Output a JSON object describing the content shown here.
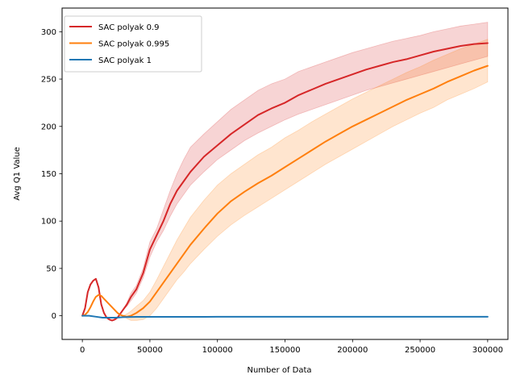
{
  "chart_data": {
    "type": "line",
    "xlabel": "Number of Data",
    "ylabel": "Avg Q1 Value",
    "xlim": [
      -15000,
      315000
    ],
    "ylim": [
      -25,
      325
    ],
    "xticks": [
      0,
      50000,
      100000,
      150000,
      200000,
      250000,
      300000
    ],
    "xtick_labels": [
      "0",
      "50000",
      "100000",
      "150000",
      "200000",
      "250000",
      "300000"
    ],
    "yticks": [
      0,
      50,
      100,
      150,
      200,
      250,
      300
    ],
    "ytick_labels": [
      "0",
      "50",
      "100",
      "150",
      "200",
      "250",
      "300"
    ],
    "grid": false,
    "legend_position": "upper-left",
    "series": [
      {
        "name": "SAC polyak 0.9",
        "color": "#d62728",
        "band_color": "#d62728",
        "x": [
          0,
          2000,
          4000,
          6000,
          8000,
          10000,
          12000,
          14000,
          16000,
          18000,
          20000,
          22000,
          24000,
          26000,
          28000,
          30000,
          33000,
          36000,
          40000,
          45000,
          50000,
          55000,
          60000,
          65000,
          70000,
          75000,
          80000,
          90000,
          100000,
          110000,
          120000,
          130000,
          140000,
          150000,
          160000,
          170000,
          180000,
          190000,
          200000,
          210000,
          220000,
          230000,
          240000,
          250000,
          260000,
          270000,
          280000,
          290000,
          300000
        ],
        "values": [
          0,
          8,
          25,
          33,
          37,
          39,
          30,
          12,
          3,
          -2,
          -4,
          -5,
          -4,
          -2,
          2,
          6,
          12,
          20,
          28,
          45,
          70,
          85,
          100,
          118,
          132,
          142,
          152,
          168,
          180,
          192,
          202,
          212,
          219,
          225,
          233,
          239,
          245,
          250,
          255,
          260,
          264,
          268,
          271,
          275,
          279,
          282,
          285,
          287,
          288
        ],
        "band_low": [
          0,
          8,
          25,
          33,
          37,
          39,
          30,
          12,
          3,
          -2,
          -4,
          -5,
          -4,
          -2,
          2,
          6,
          10,
          16,
          24,
          40,
          62,
          78,
          90,
          105,
          118,
          128,
          138,
          152,
          165,
          175,
          185,
          193,
          200,
          207,
          213,
          218,
          223,
          228,
          233,
          238,
          242,
          246,
          250,
          254,
          258,
          262,
          266,
          270,
          274
        ],
        "band_high": [
          0,
          8,
          25,
          33,
          37,
          39,
          30,
          12,
          3,
          -2,
          -4,
          -5,
          -4,
          -2,
          2,
          6,
          14,
          24,
          32,
          50,
          78,
          92,
          112,
          132,
          150,
          165,
          178,
          192,
          205,
          218,
          228,
          238,
          245,
          250,
          258,
          263,
          268,
          273,
          278,
          282,
          286,
          290,
          293,
          296,
          300,
          303,
          306,
          308,
          310
        ]
      },
      {
        "name": "SAC polyak 0.995",
        "color": "#ff7f0e",
        "band_color": "#ff7f0e",
        "x": [
          0,
          2000,
          4000,
          6000,
          8000,
          10000,
          12000,
          14000,
          16000,
          18000,
          20000,
          22000,
          24000,
          26000,
          28000,
          30000,
          33000,
          36000,
          40000,
          45000,
          50000,
          55000,
          60000,
          65000,
          70000,
          75000,
          80000,
          90000,
          100000,
          110000,
          120000,
          130000,
          140000,
          150000,
          160000,
          170000,
          180000,
          190000,
          200000,
          210000,
          220000,
          230000,
          240000,
          250000,
          260000,
          270000,
          280000,
          290000,
          300000
        ],
        "values": [
          0,
          1,
          4,
          9,
          15,
          20,
          22,
          21,
          18,
          15,
          12,
          9,
          6,
          3,
          1,
          0,
          -1,
          0,
          3,
          8,
          15,
          25,
          35,
          45,
          55,
          65,
          75,
          92,
          108,
          121,
          131,
          140,
          148,
          157,
          166,
          175,
          184,
          192,
          200,
          207,
          214,
          221,
          228,
          234,
          240,
          247,
          253,
          259,
          264
        ],
        "band_low": [
          0,
          1,
          4,
          9,
          15,
          20,
          22,
          21,
          18,
          15,
          12,
          9,
          6,
          3,
          1,
          0,
          -3,
          -5,
          -5,
          -4,
          0,
          8,
          18,
          28,
          38,
          46,
          55,
          70,
          84,
          96,
          106,
          115,
          124,
          133,
          142,
          151,
          160,
          168,
          176,
          184,
          192,
          200,
          207,
          214,
          220,
          228,
          234,
          240,
          247
        ],
        "band_high": [
          0,
          1,
          4,
          9,
          15,
          20,
          22,
          21,
          18,
          15,
          12,
          9,
          6,
          3,
          1,
          0,
          2,
          5,
          10,
          16,
          25,
          38,
          52,
          66,
          80,
          92,
          104,
          122,
          138,
          150,
          160,
          170,
          178,
          188,
          196,
          205,
          213,
          221,
          229,
          236,
          243,
          250,
          257,
          263,
          270,
          276,
          282,
          287,
          292
        ]
      },
      {
        "name": "SAC polyak 1",
        "color": "#1f77b4",
        "band_color": "#1f77b4",
        "x": [
          0,
          5000,
          10000,
          15000,
          20000,
          25000,
          30000,
          40000,
          50000,
          100000,
          150000,
          200000,
          250000,
          300000
        ],
        "values": [
          0,
          0,
          -1,
          -2,
          -2,
          -2,
          -1.5,
          -1.2,
          -1.2,
          -1.1,
          -1,
          -1,
          -1,
          -1
        ],
        "band_low": [
          0,
          0,
          -1,
          -2,
          -2,
          -2,
          -1.5,
          -1.2,
          -1.2,
          -1.1,
          -1,
          -1,
          -1,
          -1
        ],
        "band_high": [
          0,
          0,
          -1,
          -2,
          -2,
          -2,
          -1.5,
          -1.2,
          -1.2,
          -1.1,
          -1,
          -1,
          -1,
          -1
        ]
      }
    ]
  }
}
